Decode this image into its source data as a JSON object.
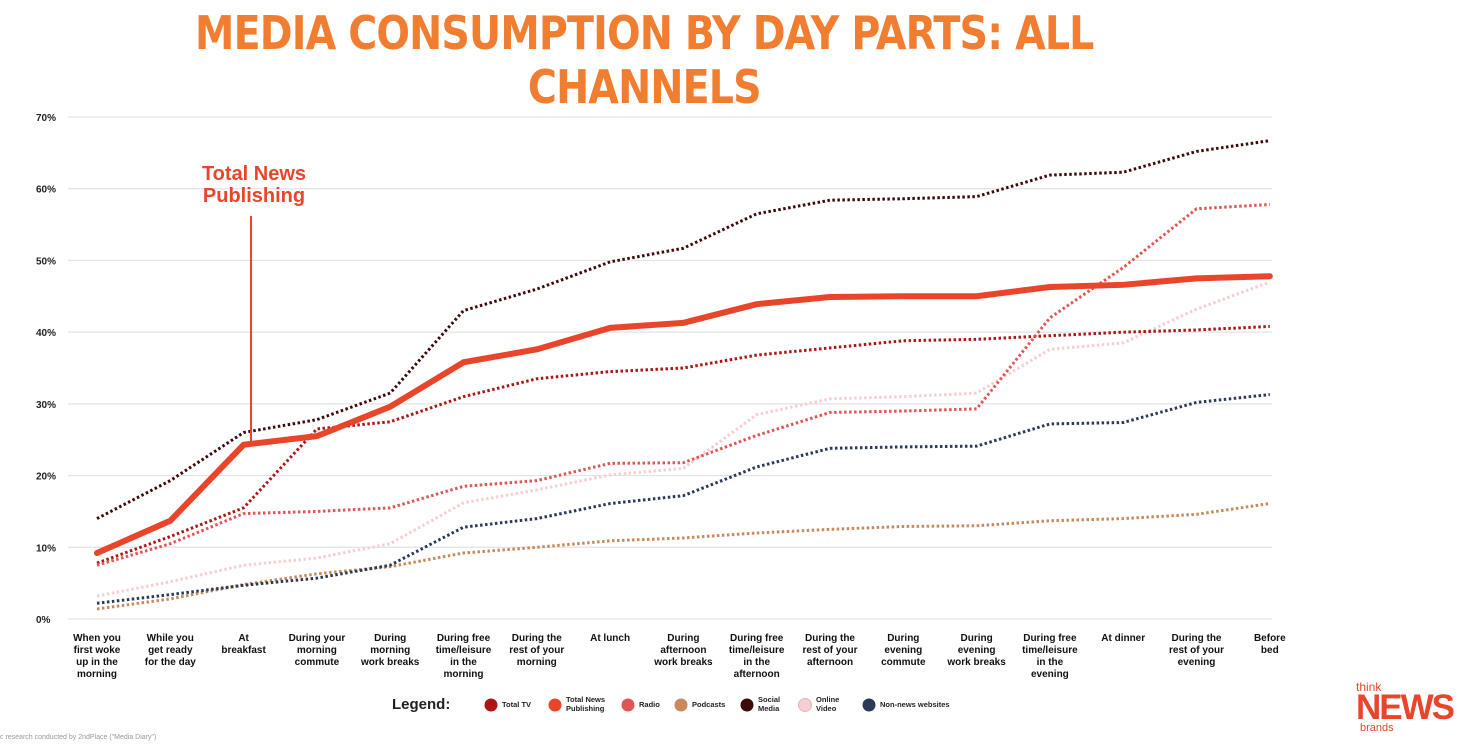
{
  "title": "MEDIA CONSUMPTION BY DAY PARTS: ALL CHANNELS",
  "footnote": "c research conducted by 2ndPlace (\"Media Diary\")",
  "logo": {
    "think": "think",
    "news": "NEWS",
    "brands": "brands"
  },
  "annotation": {
    "line1": "Total News",
    "line2": "Publishing"
  },
  "legend_title": "Legend:",
  "chart_data": {
    "type": "line",
    "title": "MEDIA CONSUMPTION BY DAY PARTS: ALL CHANNELS",
    "xlabel": "",
    "ylabel": "",
    "ylim": [
      0,
      70
    ],
    "yticks": [
      0,
      10,
      20,
      30,
      40,
      50,
      60,
      70
    ],
    "ytick_labels": [
      "0%",
      "10%",
      "20%",
      "30%",
      "40%",
      "50%",
      "60%",
      "70%"
    ],
    "grid": true,
    "legend_position": "bottom",
    "categories": [
      [
        "When you",
        "first woke",
        "up in the",
        "morning"
      ],
      [
        "While you",
        "get ready",
        "for the day"
      ],
      [
        "At",
        "breakfast"
      ],
      [
        "During your",
        "morning",
        "commute"
      ],
      [
        "During",
        "morning",
        "work breaks"
      ],
      [
        "During free",
        "time/leisure",
        "in the",
        "morning"
      ],
      [
        "During the",
        "rest of your",
        "morning"
      ],
      [
        "At lunch"
      ],
      [
        "During",
        "afternoon",
        "work breaks"
      ],
      [
        "During free",
        "time/leisure",
        "in the",
        "afternoon"
      ],
      [
        "During the",
        "rest of your",
        "afternoon"
      ],
      [
        "During",
        "evening",
        "commute"
      ],
      [
        "During",
        "evening",
        "work breaks"
      ],
      [
        "During free",
        "time/leisure",
        "in the",
        "evening"
      ],
      [
        "At dinner"
      ],
      [
        "During the",
        "rest of your",
        "evening"
      ],
      [
        "Before",
        "bed"
      ]
    ],
    "series": [
      {
        "name": "Total TV",
        "legend": [
          "Total TV"
        ],
        "color": "#b01515",
        "style": "dotted",
        "values": [
          7.8,
          11.5,
          15.5,
          26.5,
          27.5,
          31,
          33.5,
          34.5,
          35,
          36.8,
          37.8,
          38.8,
          39,
          39.5,
          40,
          40.3,
          40.8
        ]
      },
      {
        "name": "Total News Publishing",
        "legend": [
          "Total News",
          "Publishing"
        ],
        "color": "#e8452b",
        "style": "solid",
        "values": [
          9.2,
          13.7,
          24.3,
          25.5,
          29.6,
          35.8,
          37.6,
          40.6,
          41.3,
          43.9,
          44.9,
          45,
          45,
          46.3,
          46.6,
          47.5,
          47.8
        ]
      },
      {
        "name": "Radio",
        "legend": [
          "Radio"
        ],
        "color": "#e05555",
        "style": "dotted",
        "values": [
          7.5,
          10.5,
          14.7,
          15,
          15.5,
          18.5,
          19.3,
          21.7,
          21.8,
          25.6,
          28.8,
          29,
          29.3,
          42,
          49,
          57.2,
          57.8
        ]
      },
      {
        "name": "Podcasts",
        "legend": [
          "Podcasts"
        ],
        "color": "#c88a5c",
        "style": "dotted",
        "values": [
          1.4,
          2.8,
          4.8,
          6.3,
          7.3,
          9.2,
          10,
          10.9,
          11.3,
          12,
          12.5,
          12.9,
          13,
          13.7,
          14,
          14.6,
          16.1
        ]
      },
      {
        "name": "Social Media",
        "legend": [
          "Social",
          "Media"
        ],
        "color": "#3d0a0a",
        "style": "dotted",
        "values": [
          14,
          19.3,
          26,
          27.8,
          31.5,
          43,
          46,
          49.8,
          51.7,
          56.5,
          58.4,
          58.6,
          58.9,
          61.9,
          62.3,
          65.2,
          66.7
        ]
      },
      {
        "name": "Online Video",
        "legend": [
          "Online",
          "Video"
        ],
        "color": "#f5cfd2",
        "style": "dotted",
        "values": [
          3.2,
          5.2,
          7.5,
          8.5,
          10.5,
          16.2,
          18,
          20.1,
          21,
          28.5,
          30.7,
          31,
          31.5,
          37.6,
          38.5,
          43.2,
          47
        ]
      },
      {
        "name": "Non-news websites",
        "legend": [
          "Non-news websites"
        ],
        "color": "#2c3a55",
        "style": "dotted",
        "values": [
          2.2,
          3.4,
          4.7,
          5.7,
          7.5,
          12.8,
          14,
          16.1,
          17.2,
          21.2,
          23.8,
          24,
          24.1,
          27.2,
          27.4,
          30.2,
          31.3
        ]
      }
    ]
  }
}
